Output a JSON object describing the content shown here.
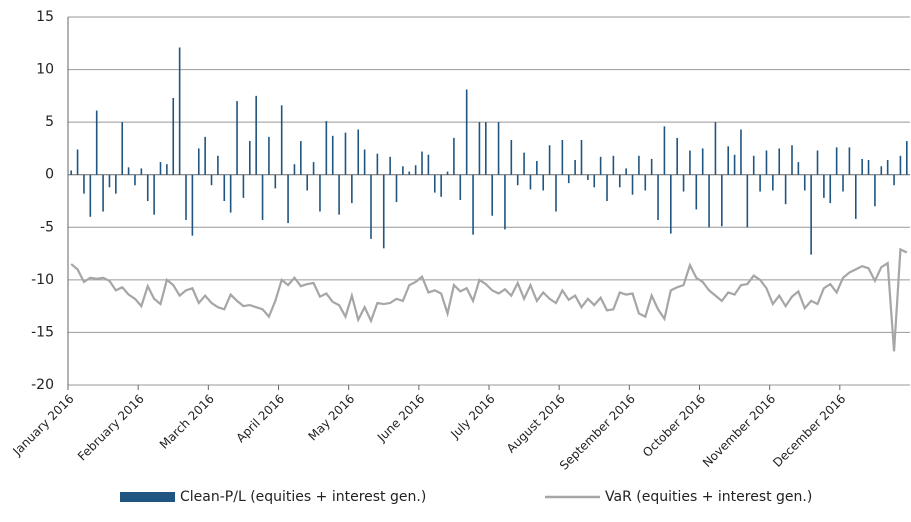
{
  "chart_data": {
    "type": "bar_line",
    "categories": [
      "January 2016",
      null,
      null,
      null,
      null,
      null,
      null,
      null,
      null,
      null,
      null,
      "February 2016",
      null,
      null,
      null,
      null,
      null,
      null,
      null,
      null,
      null,
      null,
      "March 2016",
      null,
      null,
      null,
      null,
      null,
      null,
      null,
      null,
      null,
      null,
      "April 2016",
      null,
      null,
      null,
      null,
      null,
      null,
      null,
      null,
      null,
      null,
      "May 2016",
      null,
      null,
      null,
      null,
      null,
      null,
      null,
      null,
      null,
      null,
      "June 2016",
      null,
      null,
      null,
      null,
      null,
      null,
      null,
      null,
      null,
      null,
      "July 2016",
      null,
      null,
      null,
      null,
      null,
      null,
      null,
      null,
      null,
      null,
      "August 2016",
      null,
      null,
      null,
      null,
      null,
      null,
      null,
      null,
      null,
      null,
      "September 2016",
      null,
      null,
      null,
      null,
      null,
      null,
      null,
      null,
      null,
      null,
      "October 2016",
      null,
      null,
      null,
      null,
      null,
      null,
      null,
      null,
      null,
      null,
      "November 2016",
      null,
      null,
      null,
      null,
      null,
      null,
      null,
      null,
      null,
      null,
      "December 2016",
      null,
      null,
      null,
      null,
      null,
      null,
      null,
      null,
      null,
      null
    ],
    "series": [
      {
        "name": "Clean-P/L (equities + interest gen.)",
        "color": "#1f5580",
        "kind": "bar",
        "values": [
          0.4,
          2.4,
          -1.8,
          -4,
          6.1,
          -3.5,
          -1.2,
          -1.8,
          5,
          0.7,
          -1,
          0.6,
          -2.5,
          -3.8,
          1.2,
          1,
          7.3,
          12.1,
          -4.3,
          -5.8,
          2.5,
          3.6,
          -1,
          1.8,
          -2.5,
          -3.6,
          7,
          -2.2,
          3.2,
          7.5,
          -4.3,
          3.6,
          -1.3,
          6.6,
          -4.6,
          1,
          3.2,
          -1.5,
          1.2,
          -3.5,
          5.1,
          3.7,
          -3.8,
          4,
          -2.7,
          4.3,
          2.4,
          -6.1,
          2,
          -7,
          1.7,
          -2.6,
          0.8,
          0.3,
          0.9,
          2.2,
          1.9,
          -1.7,
          -2.1,
          0.3,
          3.5,
          -2.4,
          8.1,
          -5.7,
          5,
          5,
          -3.9,
          5,
          -5.2,
          3.3,
          -1,
          2.1,
          -1.4,
          1.3,
          -1.5,
          2.8,
          -3.5,
          3.3,
          -0.8,
          1.4,
          3.3,
          -0.5,
          -1.2,
          1.7,
          -2.5,
          1.8,
          -1.2,
          0.6,
          -1.9,
          1.8,
          -1.5,
          1.5,
          -4.3,
          4.6,
          -5.6,
          3.5,
          -1.6,
          2.3,
          -3.3,
          2.5,
          -5,
          5,
          -4.9,
          2.7,
          1.9,
          4.3,
          -5,
          1.8,
          -1.6,
          2.3,
          -1.5,
          2.5,
          -2.8,
          2.8,
          1.2,
          -1.5,
          -7.6,
          2.3,
          -2.2,
          -2.7,
          2.6,
          -1.6,
          2.6,
          -4.2,
          1.5,
          1.4,
          -3,
          0.8,
          1.4,
          -1,
          1.8,
          3.2
        ]
      },
      {
        "name": "VaR (equities + interest gen.)",
        "color": "#a6a6a6",
        "kind": "line",
        "values": [
          -8.5,
          -9,
          -10.2,
          -9.8,
          -9.9,
          -9.8,
          -10.1,
          -11,
          -10.7,
          -11.4,
          -11.8,
          -12.5,
          -10.6,
          -11.8,
          -12.3,
          -10,
          -10.5,
          -11.5,
          -11,
          -10.8,
          -12.2,
          -11.5,
          -12.2,
          -12.6,
          -12.8,
          -11.4,
          -12,
          -12.5,
          -12.4,
          -12.6,
          -12.8,
          -13.5,
          -12,
          -10,
          -10.5,
          -9.8,
          -10.6,
          -10.4,
          -10.3,
          -11.6,
          -11.3,
          -12.1,
          -12.4,
          -13.5,
          -11.5,
          -13.8,
          -12.6,
          -13.9,
          -12.2,
          -12.3,
          -12.2,
          -11.8,
          -12,
          -10.5,
          -10.2,
          -9.7,
          -11.2,
          -11,
          -11.3,
          -13.2,
          -10.5,
          -11.1,
          -10.8,
          -12,
          -10,
          -10.4,
          -11,
          -11.3,
          -10.9,
          -11.5,
          -10.3,
          -11.8,
          -10.5,
          -12,
          -11.2,
          -11.8,
          -12.2,
          -11,
          -11.9,
          -11.5,
          -12.6,
          -11.8,
          -12.4,
          -11.7,
          -12.9,
          -12.8,
          -11.2,
          -11.4,
          -11.3,
          -13.2,
          -13.5,
          -11.5,
          -12.8,
          -13.7,
          -11,
          -10.7,
          -10.5,
          -8.6,
          -9.8,
          -10.2,
          -11,
          -11.5,
          -12,
          -11.2,
          -11.4,
          -10.5,
          -10.4,
          -9.6,
          -10,
          -10.8,
          -12.3,
          -11.5,
          -12.5,
          -11.6,
          -11.1,
          -12.7,
          -12,
          -12.3,
          -10.8,
          -10.4,
          -11.2,
          -9.8,
          -9.3,
          -9,
          -8.7,
          -8.9,
          -10.1,
          -8.8,
          -8.4,
          -16.8,
          -7.1,
          -7.4
        ]
      }
    ],
    "ylim": [
      -20,
      15
    ],
    "yticks": [
      15,
      10,
      5,
      0,
      -5,
      -10,
      -15,
      -20
    ],
    "grid": true,
    "legend": "bottom"
  }
}
